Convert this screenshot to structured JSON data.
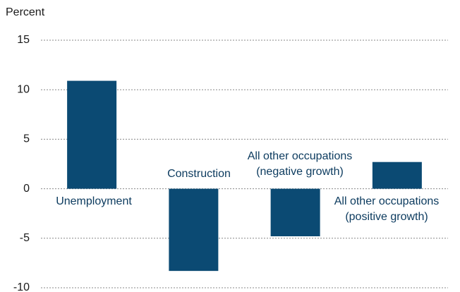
{
  "chart_data": {
    "type": "bar",
    "y_label": "Percent",
    "categories": [
      "Unemployment",
      "Construction",
      "All other occupations (negative growth)",
      "All other occupations (positive growth)"
    ],
    "values": [
      10.9,
      -8.3,
      -4.8,
      2.7
    ],
    "color": "#0b4a73",
    "ylim": [
      -10,
      15
    ],
    "yticks": [
      -10,
      -5,
      0,
      5,
      10,
      15
    ],
    "grid": true
  }
}
